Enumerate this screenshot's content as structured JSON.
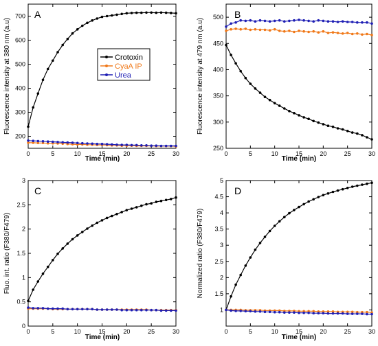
{
  "chart_data": [
    {
      "panel": "A",
      "type": "line",
      "xlabel": "Time (min)",
      "ylabel": "Fluorescence intensity at 380 nm (a.u)",
      "xlim": [
        0,
        30
      ],
      "ylim": [
        150,
        750
      ],
      "xticks": [
        0,
        5,
        10,
        15,
        20,
        25,
        30
      ],
      "yticks": [
        200,
        300,
        400,
        500,
        600,
        700
      ],
      "legend": {
        "placement": "center-right",
        "entries": [
          "Crotoxin",
          "CyaA IP",
          "Urea"
        ]
      },
      "x": [
        0,
        1,
        2,
        3,
        4,
        5,
        6,
        7,
        8,
        9,
        10,
        11,
        12,
        13,
        14,
        15,
        16,
        17,
        18,
        19,
        20,
        21,
        22,
        23,
        24,
        25,
        26,
        27,
        28,
        29,
        30
      ],
      "series": [
        {
          "name": "Crotoxin",
          "color": "#000000",
          "values": [
            240,
            320,
            378,
            435,
            480,
            515,
            550,
            580,
            605,
            628,
            645,
            660,
            672,
            682,
            690,
            697,
            700,
            703,
            706,
            709,
            712,
            713,
            714,
            714,
            715,
            715,
            714,
            715,
            714,
            713,
            712
          ]
        },
        {
          "name": "CyaA IP",
          "color": "#F07818",
          "values": [
            173,
            173,
            172,
            172,
            171,
            171,
            170,
            169,
            168,
            167,
            166,
            166,
            165,
            165,
            164,
            164,
            163,
            162,
            162,
            161,
            161,
            161,
            160,
            160,
            160,
            160,
            159,
            159,
            159,
            159,
            158
          ]
        },
        {
          "name": "Urea",
          "color": "#1E1EB4",
          "values": [
            182,
            181,
            180,
            179,
            178,
            177,
            176,
            175,
            174,
            173,
            172,
            171,
            170,
            169,
            168,
            168,
            167,
            166,
            165,
            164,
            164,
            163,
            163,
            162,
            162,
            161,
            161,
            160,
            160,
            160,
            160
          ]
        }
      ]
    },
    {
      "panel": "B",
      "type": "line",
      "xlabel": "Time (min)",
      "ylabel": "Fluorescence intensity at 479 nm (a.u)",
      "xlim": [
        0,
        30
      ],
      "ylim": [
        250,
        525
      ],
      "xticks": [
        0,
        5,
        10,
        15,
        20,
        25,
        30
      ],
      "yticks": [
        250,
        300,
        350,
        400,
        450,
        500
      ],
      "x": [
        0,
        1,
        2,
        3,
        4,
        5,
        6,
        7,
        8,
        9,
        10,
        11,
        12,
        13,
        14,
        15,
        16,
        17,
        18,
        19,
        20,
        21,
        22,
        23,
        24,
        25,
        26,
        27,
        28,
        29,
        30
      ],
      "series": [
        {
          "name": "Crotoxin",
          "color": "#000000",
          "values": [
            447,
            428,
            412,
            397,
            384,
            373,
            364,
            356,
            348,
            342,
            336,
            331,
            326,
            321,
            317,
            313,
            309,
            306,
            302,
            299,
            296,
            293,
            291,
            288,
            286,
            283,
            280,
            278,
            275,
            271,
            267
          ]
        },
        {
          "name": "CyaA IP",
          "color": "#F07818",
          "values": [
            474,
            477,
            478,
            477,
            478,
            476,
            477,
            476,
            476,
            475,
            477,
            474,
            473,
            474,
            472,
            474,
            473,
            472,
            473,
            471,
            473,
            470,
            471,
            470,
            469,
            470,
            468,
            469,
            467,
            468,
            466
          ]
        },
        {
          "name": "Urea",
          "color": "#1E1EB4",
          "values": [
            482,
            488,
            490,
            494,
            493,
            494,
            492,
            494,
            493,
            492,
            493,
            494,
            492,
            493,
            494,
            495,
            494,
            493,
            492,
            494,
            493,
            492,
            492,
            491,
            492,
            491,
            491,
            490,
            490,
            490,
            488
          ]
        }
      ]
    },
    {
      "panel": "C",
      "type": "line",
      "xlabel": "Time (min)",
      "ylabel": "Fluo. int. ratio (F380/F479)",
      "xlim": [
        0,
        30
      ],
      "ylim": [
        0,
        3
      ],
      "xticks": [
        0,
        5,
        10,
        15,
        20,
        25,
        30
      ],
      "yticks": [
        0,
        0.5,
        1,
        1.5,
        2,
        2.5,
        3
      ],
      "x": [
        0,
        1,
        2,
        3,
        4,
        5,
        6,
        7,
        8,
        9,
        10,
        11,
        12,
        13,
        14,
        15,
        16,
        17,
        18,
        19,
        20,
        21,
        22,
        23,
        24,
        25,
        26,
        27,
        28,
        29,
        30
      ],
      "series": [
        {
          "name": "Crotoxin",
          "color": "#000000",
          "values": [
            0.52,
            0.75,
            0.92,
            1.08,
            1.22,
            1.36,
            1.49,
            1.6,
            1.7,
            1.79,
            1.87,
            1.94,
            2.01,
            2.07,
            2.13,
            2.18,
            2.23,
            2.27,
            2.31,
            2.35,
            2.39,
            2.42,
            2.45,
            2.48,
            2.51,
            2.53,
            2.56,
            2.58,
            2.6,
            2.62,
            2.65
          ]
        },
        {
          "name": "CyaA IP",
          "color": "#F07818",
          "values": [
            0.36,
            0.36,
            0.36,
            0.36,
            0.36,
            0.35,
            0.35,
            0.35,
            0.35,
            0.35,
            0.35,
            0.35,
            0.35,
            0.35,
            0.34,
            0.34,
            0.34,
            0.34,
            0.34,
            0.34,
            0.34,
            0.34,
            0.34,
            0.34,
            0.34,
            0.33,
            0.33,
            0.33,
            0.33,
            0.33,
            0.33
          ]
        },
        {
          "name": "Urea",
          "color": "#1E1EB4",
          "values": [
            0.38,
            0.37,
            0.37,
            0.37,
            0.36,
            0.36,
            0.36,
            0.36,
            0.35,
            0.35,
            0.35,
            0.35,
            0.35,
            0.35,
            0.34,
            0.34,
            0.34,
            0.34,
            0.34,
            0.33,
            0.33,
            0.33,
            0.33,
            0.33,
            0.33,
            0.33,
            0.33,
            0.32,
            0.32,
            0.32,
            0.32
          ]
        }
      ]
    },
    {
      "panel": "D",
      "type": "line",
      "xlabel": "Time (min)",
      "ylabel": "Normalized ratio (F380/F479)",
      "xlim": [
        0,
        30
      ],
      "ylim": [
        0.5,
        5
      ],
      "xticks": [
        0,
        5,
        10,
        15,
        20,
        25,
        30
      ],
      "yticks": [
        1,
        1.5,
        2,
        2.5,
        3,
        3.5,
        4,
        4.5,
        5
      ],
      "x": [
        0,
        1,
        2,
        3,
        4,
        5,
        6,
        7,
        8,
        9,
        10,
        11,
        12,
        13,
        14,
        15,
        16,
        17,
        18,
        19,
        20,
        21,
        22,
        23,
        24,
        25,
        26,
        27,
        28,
        29,
        30
      ],
      "series": [
        {
          "name": "Crotoxin",
          "color": "#000000",
          "values": [
            1.0,
            1.42,
            1.78,
            2.08,
            2.37,
            2.62,
            2.86,
            3.07,
            3.26,
            3.44,
            3.6,
            3.74,
            3.87,
            3.99,
            4.09,
            4.18,
            4.27,
            4.35,
            4.42,
            4.49,
            4.55,
            4.6,
            4.65,
            4.69,
            4.73,
            4.77,
            4.81,
            4.84,
            4.87,
            4.9,
            4.93
          ]
        },
        {
          "name": "CyaA IP",
          "color": "#F07818",
          "values": [
            1.0,
            1.0,
            1.0,
            1.0,
            0.99,
            0.99,
            0.99,
            0.99,
            0.98,
            0.98,
            0.98,
            0.98,
            0.97,
            0.97,
            0.97,
            0.96,
            0.96,
            0.96,
            0.96,
            0.95,
            0.95,
            0.95,
            0.95,
            0.94,
            0.94,
            0.94,
            0.94,
            0.93,
            0.93,
            0.93,
            0.92
          ]
        },
        {
          "name": "Urea",
          "color": "#1E1EB4",
          "values": [
            1.0,
            0.98,
            0.97,
            0.97,
            0.96,
            0.96,
            0.95,
            0.95,
            0.94,
            0.94,
            0.93,
            0.93,
            0.92,
            0.92,
            0.92,
            0.91,
            0.91,
            0.91,
            0.9,
            0.9,
            0.9,
            0.89,
            0.89,
            0.89,
            0.89,
            0.88,
            0.88,
            0.88,
            0.88,
            0.87,
            0.87
          ]
        }
      ]
    }
  ]
}
